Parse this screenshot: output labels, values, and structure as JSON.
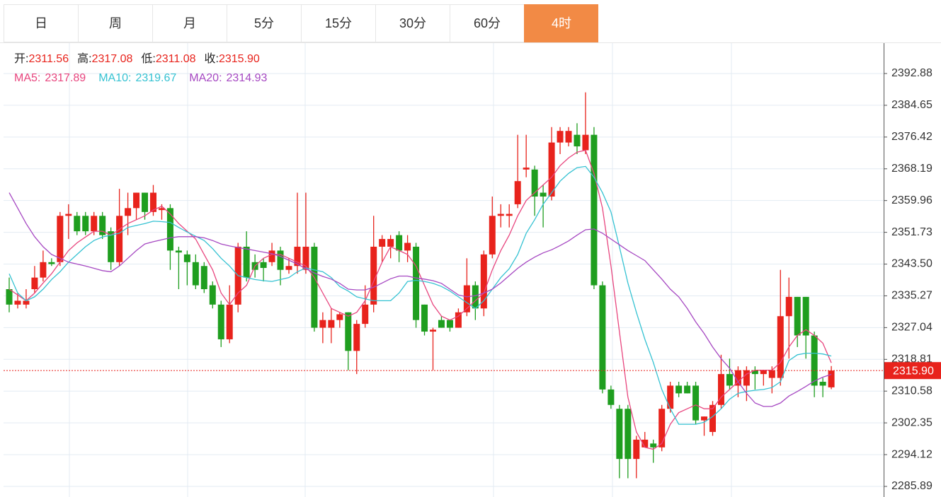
{
  "tabs": {
    "items": [
      "日",
      "周",
      "月",
      "5分",
      "15分",
      "30分",
      "60分",
      "4时"
    ],
    "active": 7,
    "active_color": "#f28a45"
  },
  "chart_data": {
    "type": "candlestick",
    "info": [
      {
        "label": "开:",
        "value": "2311.56"
      },
      {
        "label": "高:",
        "value": "2317.08"
      },
      {
        "label": "低:",
        "value": "2311.08"
      },
      {
        "label": "收:",
        "value": "2315.90"
      }
    ],
    "up_color": "#e8231c",
    "down_color": "#1f9e1f",
    "ylim": [
      2283.14,
      2400.94
    ],
    "yticks": [
      2285.89,
      2294.12,
      2302.35,
      2310.58,
      2318.81,
      2327.04,
      2335.27,
      {
        "value": 2343.5,
        "label": "2343.50"
      },
      2351.73,
      2359.96,
      2368.19,
      2376.42,
      2384.65,
      2392.88
    ],
    "grid": true,
    "last_price": {
      "value": 2315.9,
      "label": "2315.90"
    },
    "ohlc": [
      [
        2337,
        2340,
        2331,
        2333
      ],
      [
        2333,
        2336,
        2332,
        2334
      ],
      [
        2333,
        2337,
        2332,
        2334
      ],
      [
        2337,
        2343,
        2336,
        2340
      ],
      [
        2340,
        2347,
        2339,
        2344
      ],
      [
        2344,
        2345,
        2343,
        2343.5
      ],
      [
        2344,
        2357,
        2343,
        2356
      ],
      [
        2356,
        2359,
        2350,
        2356.5
      ],
      [
        2356,
        2357,
        2351,
        2352
      ],
      [
        2356,
        2357,
        2351,
        2352
      ],
      [
        2352,
        2357,
        2351,
        2356
      ],
      [
        2356,
        2357,
        2350,
        2351
      ],
      [
        2352,
        2353,
        2342,
        2344
      ],
      [
        2344,
        2363,
        2343,
        2356
      ],
      [
        2356,
        2362,
        2351,
        2358
      ],
      [
        2358,
        2362,
        2355,
        2362
      ],
      [
        2362,
        2362,
        2355,
        2357
      ],
      [
        2357,
        2364,
        2356,
        2362
      ],
      [
        2357.5,
        2359,
        2355,
        2358
      ],
      [
        2358,
        2359,
        2342,
        2347
      ],
      [
        2347,
        2348,
        2337,
        2346.5
      ],
      [
        2346,
        2347,
        2338,
        2344
      ],
      [
        2344,
        2346,
        2337,
        2338
      ],
      [
        2343,
        2344,
        2336,
        2337
      ],
      [
        2338,
        2339,
        2332,
        2333
      ],
      [
        2333,
        2334,
        2322,
        2324
      ],
      [
        2324,
        2338,
        2323,
        2333
      ],
      [
        2333,
        2349,
        2331,
        2348
      ],
      [
        2348,
        2352,
        2339,
        2340
      ],
      [
        2344,
        2346,
        2340,
        2342
      ],
      [
        2344,
        2345,
        2339,
        2342.5
      ],
      [
        2344,
        2349,
        2343,
        2347
      ],
      [
        2347,
        2348,
        2338,
        2342
      ],
      [
        2342,
        2345,
        2341,
        2343
      ],
      [
        2343,
        2362,
        2341,
        2348
      ],
      [
        2342,
        2362,
        2341,
        2348
      ],
      [
        2348,
        2349,
        2326,
        2327
      ],
      [
        2327,
        2331,
        2323,
        2329
      ],
      [
        2327,
        2332,
        2323,
        2329
      ],
      [
        2329,
        2331,
        2327,
        2330.5
      ],
      [
        2331,
        2331,
        2316,
        2321
      ],
      [
        2321,
        2329,
        2315,
        2328
      ],
      [
        2328,
        2338,
        2327,
        2333
      ],
      [
        2333,
        2356,
        2331,
        2348
      ],
      [
        2348,
        2351,
        2344,
        2350
      ],
      [
        2348,
        2351,
        2345,
        2350
      ],
      [
        2351,
        2352,
        2344,
        2347
      ],
      [
        2347,
        2351,
        2344,
        2349
      ],
      [
        2348,
        2349,
        2327,
        2329
      ],
      [
        2333,
        2333,
        2325,
        2326
      ],
      [
        2326,
        2327,
        2316,
        2326.5
      ],
      [
        2329,
        2330,
        2327,
        2327
      ],
      [
        2329,
        2329,
        2326,
        2327
      ],
      [
        2327,
        2332,
        2327,
        2331
      ],
      [
        2331,
        2345,
        2330,
        2338
      ],
      [
        2338,
        2339,
        2329,
        2332
      ],
      [
        2332,
        2347,
        2330,
        2346
      ],
      [
        2346,
        2361,
        2345,
        2356
      ],
      [
        2356,
        2359,
        2353,
        2356.5
      ],
      [
        2356,
        2359,
        2353,
        2356.5
      ],
      [
        2359,
        2377,
        2358,
        2365
      ],
      [
        2368,
        2377,
        2366,
        2368.5
      ],
      [
        2368,
        2369,
        2356,
        2361
      ],
      [
        2362,
        2364,
        2353,
        2361
      ],
      [
        2361,
        2379,
        2360,
        2375
      ],
      [
        2375,
        2379,
        2372,
        2378
      ],
      [
        2375,
        2379,
        2374,
        2378
      ],
      [
        2377,
        2380,
        2372,
        2374
      ],
      [
        2373,
        2388,
        2372,
        2377
      ],
      [
        2377,
        2379,
        2337,
        2338
      ],
      [
        2338,
        2339,
        2310,
        2311
      ],
      [
        2311,
        2312,
        2306,
        2307
      ],
      [
        2306,
        2307,
        2288,
        2293
      ],
      [
        2306,
        2307,
        2288,
        2293
      ],
      [
        2293,
        2299,
        2288,
        2298
      ],
      [
        2296,
        2300,
        2296,
        2298
      ],
      [
        2297,
        2298,
        2292,
        2296
      ],
      [
        2296,
        2307,
        2295,
        2306
      ],
      [
        2306,
        2313,
        2305,
        2312
      ],
      [
        2312,
        2313,
        2309,
        2310
      ],
      [
        2312,
        2313,
        2310,
        2310
      ],
      [
        2312,
        2313,
        2302,
        2303
      ],
      [
        2303,
        2304,
        2299,
        2304
      ],
      [
        2300,
        2308,
        2299,
        2307
      ],
      [
        2307,
        2320,
        2306,
        2315
      ],
      [
        2315,
        2319,
        2311,
        2312
      ],
      [
        2312,
        2317,
        2309,
        2316
      ],
      [
        2312,
        2317,
        2308,
        2316
      ],
      [
        2316,
        2317,
        2311,
        2315
      ],
      [
        2315,
        2316,
        2312,
        2316
      ],
      [
        2314,
        2317,
        2310,
        2316
      ],
      [
        2314,
        2342,
        2312,
        2330
      ],
      [
        2330,
        2340,
        2319,
        2335
      ],
      [
        2335,
        2335,
        2322,
        2325
      ],
      [
        2335,
        2335,
        2319,
        2325
      ],
      [
        2325,
        2326,
        2309,
        2312
      ],
      [
        2313,
        2314,
        2309,
        2312
      ],
      [
        2311.56,
        2317.08,
        2311.08,
        2315.9
      ]
    ],
    "series": [
      {
        "name": "MA5:",
        "latest": "2317.89",
        "color": "#e8457e",
        "values": [
          2337,
          2335.5,
          2334,
          2336,
          2338.6,
          2341,
          2344,
          2347,
          2349,
          2350.5,
          2352,
          2352,
          2351,
          2352.5,
          2354,
          2355,
          2356,
          2357.5,
          2358.5,
          2356.5,
          2354,
          2352,
          2350,
          2346,
          2342,
          2336,
          2333,
          2336,
          2338,
          2343,
          2345,
          2346,
          2346,
          2345,
          2344,
          2343,
          2340,
          2336,
          2332,
          2331,
          2330,
          2331,
          2334,
          2339,
          2344,
          2348,
          2347,
          2346,
          2343,
          2338,
          2333,
          2330,
          2329,
          2330,
          2332,
          2334,
          2336,
          2342,
          2347,
          2351,
          2356,
          2360,
          2362,
          2364,
          2366,
          2369,
          2371,
          2372.5,
          2373,
          2367,
          2358,
          2343,
          2326,
          2309,
          2300,
          2296,
          2295.5,
          2297,
          2302,
          2305,
          2306,
          2307,
          2306,
          2306,
          2309,
          2311,
          2313,
          2315,
          2316,
          2316,
          2316,
          2318,
          2322,
          2325,
          2326.5,
          2325,
          2323,
          2317.89
        ]
      },
      {
        "name": "MA10:",
        "latest": "2319.67",
        "color": "#35c2d2",
        "values": [
          2341,
          2336,
          2334,
          2335,
          2337,
          2339.5,
          2341.5,
          2344,
          2346,
          2348,
          2349.6,
          2350.5,
          2351,
          2351.5,
          2353,
          2353.5,
          2354,
          2354.6,
          2354.5,
          2354.3,
          2353,
          2351.8,
          2350.7,
          2349.6,
          2347.5,
          2345,
          2343,
          2340.5,
          2340,
          2339.5,
          2339.2,
          2339,
          2339.5,
          2340,
          2341.5,
          2342.5,
          2342,
          2341.5,
          2340,
          2337.7,
          2336.5,
          2335,
          2334.5,
          2334,
          2334,
          2334,
          2336,
          2339,
          2339.3,
          2339,
          2338.5,
          2337.7,
          2336.5,
          2335,
          2333.5,
          2332,
          2334,
          2337,
          2340,
          2342.3,
          2346,
          2351.5,
          2355,
          2359,
          2362,
          2365,
          2367,
          2368.5,
          2368.8,
          2366,
          2362,
          2357,
          2348,
          2338.6,
          2331,
          2324,
          2318,
          2311,
          2306,
          2302,
          2302,
          2302,
          2302.5,
          2304,
          2306,
          2308.5,
          2310,
          2310.5,
          2310.8,
          2311,
          2311.5,
          2313,
          2318.5,
          2320,
          2320.4,
          2320.4,
          2320.2,
          2319.67
        ]
      },
      {
        "name": "MA20:",
        "latest": "2314.93",
        "color": "#a648c2",
        "values": [
          2362,
          2358,
          2354,
          2350.6,
          2348,
          2346,
          2345,
          2344,
          2343.5,
          2343,
          2342.4,
          2341.8,
          2341.5,
          2343,
          2345,
          2347,
          2348.7,
          2349.3,
          2349.8,
          2350.3,
          2350.6,
          2350.6,
          2350.6,
          2350.3,
          2349.6,
          2348.7,
          2348.2,
          2347.8,
          2347.4,
          2347,
          2346.6,
          2346.2,
          2345.5,
          2344.5,
          2343.5,
          2342.3,
          2341.2,
          2340.3,
          2339.6,
          2338.5,
          2337,
          2336.8,
          2336.8,
          2337.5,
          2338.6,
          2339.7,
          2340.4,
          2340.4,
          2339.9,
          2339.6,
          2339.2,
          2338.5,
          2337,
          2335.5,
          2335,
          2335.3,
          2336,
          2337,
          2338.6,
          2340.5,
          2342.4,
          2344,
          2345.3,
          2346.4,
          2347.2,
          2348.3,
          2349.5,
          2351,
          2352.4,
          2352.6,
          2351.5,
          2350,
          2348.5,
          2347,
          2345.7,
          2344.4,
          2342,
          2339.6,
          2337,
          2335,
          2332,
          2328.5,
          2325.5,
          2322,
          2319,
          2316.5,
          2313,
          2310,
          2307.5,
          2306.6,
          2306.6,
          2307.5,
          2309.3,
          2310.5,
          2311.8,
          2313.2,
          2314.2,
          2314.93
        ]
      }
    ]
  }
}
